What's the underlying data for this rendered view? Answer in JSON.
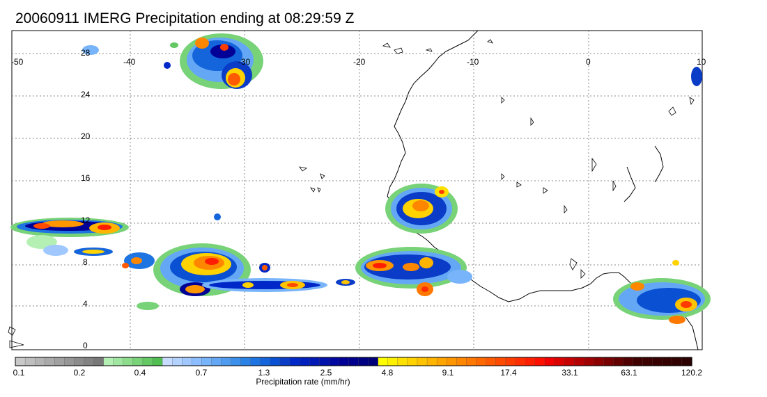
{
  "title": "20060911 IMERG Precipitation ending at 08:29:59 Z",
  "map": {
    "lon_labels": [
      "-50",
      "-40",
      "-30",
      "-20",
      "-10",
      "0",
      "10"
    ],
    "lat_labels": [
      "28",
      "24",
      "20",
      "16",
      "12",
      "8",
      "4",
      "0"
    ]
  },
  "colorbar": {
    "label": "Precipitation rate (mm/hr)",
    "tick_labels": [
      "0.1",
      "0.2",
      "0.4",
      "0.7",
      "1.3",
      "2.5",
      "4.8",
      "9.1",
      "17.4",
      "33.1",
      "63.1",
      "120.2"
    ],
    "colors": [
      "#c8c8c8",
      "#bebebe",
      "#b4b4b4",
      "#aaaaaa",
      "#a0a0a0",
      "#969696",
      "#8c8c8c",
      "#828282",
      "#787878",
      "#b4f0b4",
      "#a0e6a0",
      "#8cdc8c",
      "#78d278",
      "#64c864",
      "#50be50",
      "#c8dcff",
      "#b4d2ff",
      "#a0c8ff",
      "#8cbeff",
      "#78b4fa",
      "#64a8f5",
      "#509cf0",
      "#3c90eb",
      "#2a82e6",
      "#1e74e1",
      "#1464dc",
      "#0a50d2",
      "#0a3cc8",
      "#0028c8",
      "#0020be",
      "#0018b4",
      "#0010aa",
      "#0008a0",
      "#000096",
      "#00008c",
      "#000082",
      "#000078",
      "#ffff00",
      "#fff000",
      "#ffe100",
      "#ffd200",
      "#ffc300",
      "#ffb400",
      "#ffa500",
      "#ff9600",
      "#ff8700",
      "#ff7800",
      "#ff6900",
      "#ff5a00",
      "#ff4b00",
      "#ff3c00",
      "#ff2d00",
      "#ff1e00",
      "#ff0f00",
      "#f00000",
      "#dc0000",
      "#c80000",
      "#b40000",
      "#a00000",
      "#8c0000",
      "#780000",
      "#640000",
      "#500000",
      "#400000",
      "#3c0000",
      "#380000",
      "#340000",
      "#300000",
      "#2c0000"
    ]
  }
}
